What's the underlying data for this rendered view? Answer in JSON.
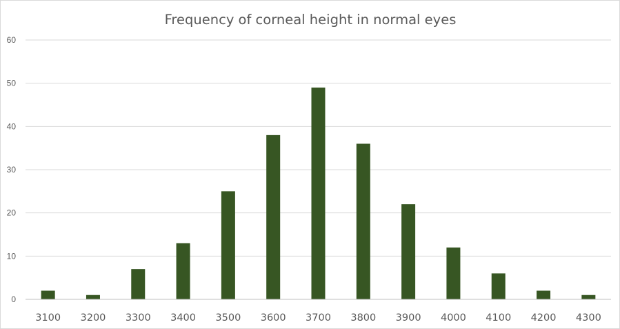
{
  "chart_data": {
    "type": "bar",
    "title": "Frequency of corneal height in normal eyes",
    "xlabel": "",
    "ylabel": "",
    "categories": [
      "3100",
      "3200",
      "3300",
      "3400",
      "3500",
      "3600",
      "3700",
      "3800",
      "3900",
      "4000",
      "4100",
      "4200",
      "4300"
    ],
    "values": [
      2,
      1,
      7,
      13,
      25,
      38,
      49,
      36,
      22,
      12,
      6,
      2,
      1
    ],
    "ylim": [
      0,
      60
    ],
    "yticks": [
      "0",
      "10",
      "20",
      "30",
      "40",
      "50",
      "60"
    ],
    "grid": true,
    "legend": "none",
    "bar_color": "#375623"
  }
}
